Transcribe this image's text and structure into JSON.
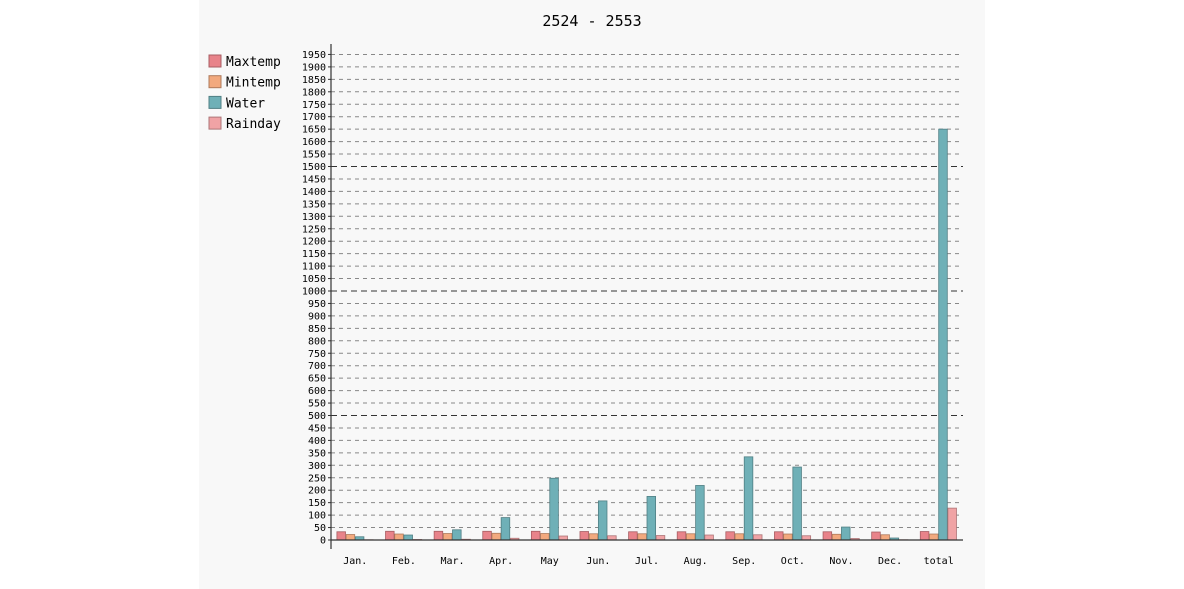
{
  "chart_data": {
    "type": "bar",
    "title": "2524 - 2553",
    "categories": [
      "Jan.",
      "Feb.",
      "Mar.",
      "Apr.",
      "May",
      "Jun.",
      "Jul.",
      "Aug.",
      "Sep.",
      "Oct.",
      "Nov.",
      "Dec.",
      "total"
    ],
    "series": [
      {
        "name": "Maxtemp",
        "color": "#e8838a",
        "values": [
          33,
          35,
          35,
          35,
          35,
          34,
          33,
          33,
          33,
          33,
          33,
          32,
          34
        ]
      },
      {
        "name": "Mintemp",
        "color": "#f2a97e",
        "values": [
          22,
          24,
          26,
          27,
          26,
          25,
          25,
          25,
          25,
          24,
          23,
          21,
          24
        ]
      },
      {
        "name": "Water",
        "color": "#6fb0b7",
        "values": [
          13,
          20,
          41,
          90,
          248,
          157,
          175,
          219,
          334,
          293,
          52,
          8,
          1650
        ]
      },
      {
        "name": "Rainday",
        "color": "#f0a3a5",
        "values": [
          1,
          2,
          3,
          7,
          16,
          17,
          18,
          20,
          21,
          17,
          6,
          1,
          128
        ]
      }
    ],
    "ylim": [
      0,
      1950
    ],
    "ytick_step": 50,
    "major_gridlines": [
      500,
      1000,
      1500
    ],
    "grid": true,
    "legend_position": "top-left"
  }
}
